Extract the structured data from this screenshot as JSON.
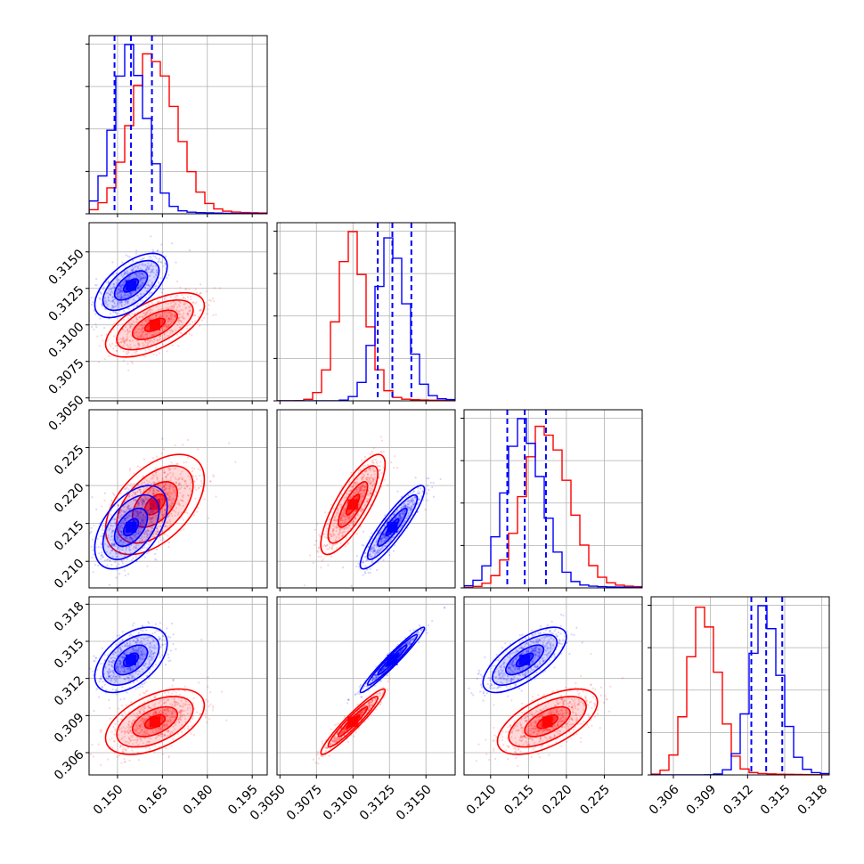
{
  "chart_data": {
    "type": "corner",
    "grid": true,
    "colors": {
      "red": "#ff0000",
      "blue": "#0000ff"
    },
    "series": [
      {
        "color": "red",
        "mean": [
          0.1625,
          0.31,
          0.2175,
          0.3085
        ],
        "std": [
          0.0075,
          0.001,
          0.003,
          0.0012
        ],
        "corr": [
          [
            1.0,
            0.6,
            0.5,
            0.5
          ],
          [
            0.6,
            1.0,
            0.8,
            0.95
          ],
          [
            0.5,
            0.8,
            1.0,
            0.6
          ],
          [
            0.5,
            0.95,
            0.6,
            1.0
          ]
        ],
        "quantile_lines": []
      },
      {
        "color": "blue",
        "mean": [
          0.1545,
          0.3127,
          0.2145,
          0.3135
        ],
        "std": [
          0.0055,
          0.001,
          0.0025,
          0.0012
        ],
        "corr": [
          [
            1.0,
            0.6,
            0.5,
            0.5
          ],
          [
            0.6,
            1.0,
            0.9,
            0.97
          ],
          [
            0.5,
            0.9,
            1.0,
            0.7
          ],
          [
            0.5,
            0.97,
            0.7,
            1.0
          ]
        ],
        "quantile_lines": [
          [
            0.149,
            0.1545,
            0.1615
          ],
          [
            0.3117,
            0.3127,
            0.314
          ],
          [
            0.2122,
            0.2145,
            0.2173
          ],
          [
            0.3123,
            0.3135,
            0.3148
          ]
        ]
      }
    ],
    "params": [
      {
        "range": [
          0.1405,
          0.2
        ],
        "ticks": [
          0.15,
          0.165,
          0.18,
          0.195
        ],
        "tick_labels": [
          "0.150",
          "0.165",
          "0.180",
          "0.195"
        ]
      },
      {
        "range": [
          0.3048,
          0.317
        ],
        "ticks": [
          0.305,
          0.3075,
          0.31,
          0.3125,
          0.315
        ],
        "tick_labels": [
          "0.3050",
          "0.3075",
          "0.3100",
          "0.3125",
          "0.3150"
        ]
      },
      {
        "range": [
          0.2065,
          0.23
        ],
        "ticks": [
          0.21,
          0.215,
          0.22,
          0.225
        ],
        "tick_labels": [
          "0.210",
          "0.215",
          "0.220",
          "0.225"
        ]
      },
      {
        "range": [
          0.3042,
          0.3186
        ],
        "ticks": [
          0.306,
          0.309,
          0.312,
          0.315,
          0.318
        ],
        "tick_labels": [
          "0.306",
          "0.309",
          "0.312",
          "0.315",
          "0.318"
        ]
      }
    ]
  }
}
